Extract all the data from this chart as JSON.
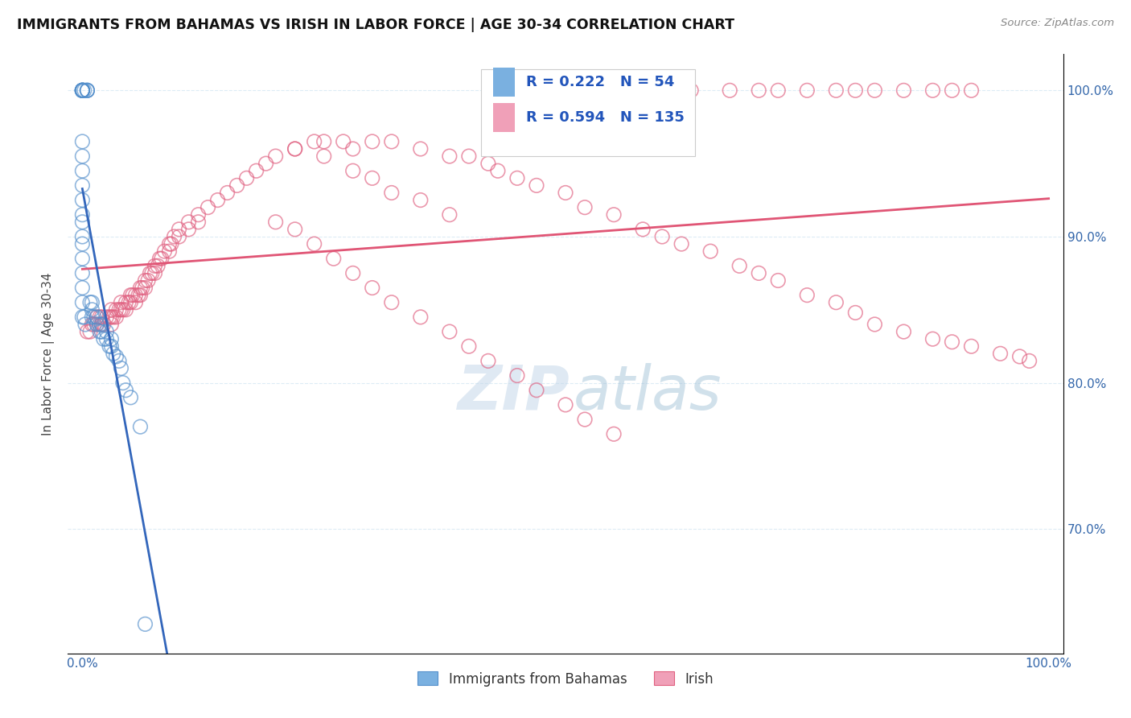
{
  "title": "IMMIGRANTS FROM BAHAMAS VS IRISH IN LABOR FORCE | AGE 30-34 CORRELATION CHART",
  "source": "Source: ZipAtlas.com",
  "ylabel": "In Labor Force | Age 30-34",
  "legend_R1": "0.222",
  "legend_N1": "54",
  "legend_R2": "0.594",
  "legend_N2": "135",
  "watermark_zip": "ZIP",
  "watermark_atlas": "atlas",
  "watermark_color": "#c8dff0",
  "blue_scatter_color": "#7ab0e0",
  "blue_edge_color": "#5590cc",
  "pink_scatter_color": "#f0a0b8",
  "pink_edge_color": "#e06080",
  "blue_line_color": "#3366bb",
  "pink_line_color": "#e05575",
  "dashed_line_color": "#aaccdd",
  "background_color": "#ffffff",
  "grid_color": "#ddecf5",
  "tick_color": "#3366aa",
  "ylim_low": 0.615,
  "ylim_high": 1.025,
  "xlim_low": -0.015,
  "xlim_high": 1.015,
  "bahamas_x": [
    0.0,
    0.0,
    0.0,
    0.0,
    0.0,
    0.0,
    0.0,
    0.0,
    0.002,
    0.005,
    0.005,
    0.005,
    0.0,
    0.0,
    0.0,
    0.0,
    0.0,
    0.0,
    0.0,
    0.0,
    0.0,
    0.0,
    0.0,
    0.0,
    0.0,
    0.0,
    0.002,
    0.003,
    0.008,
    0.01,
    0.01,
    0.01,
    0.012,
    0.015,
    0.015,
    0.018,
    0.018,
    0.02,
    0.02,
    0.022,
    0.025,
    0.025,
    0.028,
    0.03,
    0.03,
    0.032,
    0.035,
    0.038,
    0.04,
    0.042,
    0.045,
    0.05,
    0.06,
    0.065
  ],
  "bahamas_y": [
    1.0,
    1.0,
    1.0,
    1.0,
    1.0,
    1.0,
    1.0,
    1.0,
    1.0,
    1.0,
    1.0,
    1.0,
    0.965,
    0.955,
    0.945,
    0.935,
    0.925,
    0.915,
    0.91,
    0.9,
    0.895,
    0.885,
    0.875,
    0.865,
    0.855,
    0.845,
    0.845,
    0.84,
    0.855,
    0.855,
    0.85,
    0.845,
    0.845,
    0.845,
    0.84,
    0.84,
    0.835,
    0.84,
    0.835,
    0.83,
    0.835,
    0.83,
    0.825,
    0.83,
    0.825,
    0.82,
    0.818,
    0.815,
    0.81,
    0.8,
    0.795,
    0.79,
    0.77,
    0.635
  ],
  "irish_x": [
    0.005,
    0.008,
    0.01,
    0.012,
    0.015,
    0.015,
    0.018,
    0.02,
    0.02,
    0.022,
    0.025,
    0.028,
    0.03,
    0.03,
    0.03,
    0.032,
    0.035,
    0.035,
    0.038,
    0.04,
    0.04,
    0.042,
    0.045,
    0.045,
    0.048,
    0.05,
    0.05,
    0.052,
    0.055,
    0.055,
    0.058,
    0.06,
    0.06,
    0.062,
    0.065,
    0.065,
    0.068,
    0.07,
    0.072,
    0.075,
    0.075,
    0.078,
    0.08,
    0.082,
    0.085,
    0.09,
    0.09,
    0.092,
    0.095,
    0.1,
    0.1,
    0.11,
    0.11,
    0.12,
    0.12,
    0.13,
    0.14,
    0.15,
    0.16,
    0.17,
    0.18,
    0.19,
    0.2,
    0.22,
    0.24,
    0.25,
    0.27,
    0.28,
    0.3,
    0.32,
    0.35,
    0.38,
    0.4,
    0.42,
    0.43,
    0.45,
    0.47,
    0.5,
    0.52,
    0.55,
    0.58,
    0.6,
    0.62,
    0.65,
    0.68,
    0.7,
    0.72,
    0.75,
    0.78,
    0.8,
    0.82,
    0.85,
    0.88,
    0.9,
    0.92,
    0.95,
    0.97,
    0.98,
    0.55,
    0.6,
    0.63,
    0.67,
    0.7,
    0.72,
    0.75,
    0.78,
    0.8,
    0.82,
    0.85,
    0.88,
    0.9,
    0.92,
    0.22,
    0.25,
    0.28,
    0.3,
    0.32,
    0.35,
    0.38,
    0.2,
    0.22,
    0.24,
    0.26,
    0.28,
    0.3,
    0.32,
    0.35,
    0.38,
    0.4,
    0.42,
    0.45,
    0.47,
    0.5,
    0.52,
    0.55
  ],
  "irish_y": [
    0.835,
    0.835,
    0.84,
    0.84,
    0.845,
    0.84,
    0.845,
    0.845,
    0.84,
    0.84,
    0.845,
    0.845,
    0.85,
    0.845,
    0.84,
    0.845,
    0.85,
    0.845,
    0.85,
    0.855,
    0.85,
    0.85,
    0.855,
    0.85,
    0.855,
    0.86,
    0.855,
    0.86,
    0.86,
    0.855,
    0.86,
    0.865,
    0.86,
    0.865,
    0.87,
    0.865,
    0.87,
    0.875,
    0.875,
    0.88,
    0.875,
    0.88,
    0.885,
    0.885,
    0.89,
    0.895,
    0.89,
    0.895,
    0.9,
    0.905,
    0.9,
    0.91,
    0.905,
    0.915,
    0.91,
    0.92,
    0.925,
    0.93,
    0.935,
    0.94,
    0.945,
    0.95,
    0.955,
    0.96,
    0.965,
    0.965,
    0.965,
    0.96,
    0.965,
    0.965,
    0.96,
    0.955,
    0.955,
    0.95,
    0.945,
    0.94,
    0.935,
    0.93,
    0.92,
    0.915,
    0.905,
    0.9,
    0.895,
    0.89,
    0.88,
    0.875,
    0.87,
    0.86,
    0.855,
    0.848,
    0.84,
    0.835,
    0.83,
    0.828,
    0.825,
    0.82,
    0.818,
    0.815,
    1.0,
    1.0,
    1.0,
    1.0,
    1.0,
    1.0,
    1.0,
    1.0,
    1.0,
    1.0,
    1.0,
    1.0,
    1.0,
    1.0,
    0.96,
    0.955,
    0.945,
    0.94,
    0.93,
    0.925,
    0.915,
    0.91,
    0.905,
    0.895,
    0.885,
    0.875,
    0.865,
    0.855,
    0.845,
    0.835,
    0.825,
    0.815,
    0.805,
    0.795,
    0.785,
    0.775,
    0.765
  ]
}
